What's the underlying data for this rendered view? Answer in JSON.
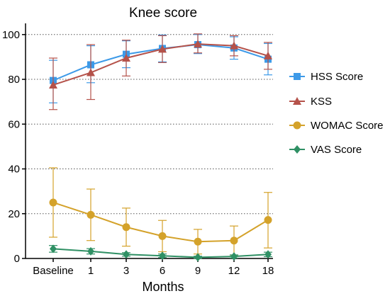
{
  "chart_data": {
    "type": "line",
    "title": "Knee score",
    "xlabel": "Months",
    "ylabel": "",
    "categories": [
      "Baseline",
      "1",
      "3",
      "6",
      "9",
      "12",
      "18"
    ],
    "ylim": [
      0,
      105
    ],
    "yticks": [
      0,
      20,
      40,
      60,
      80,
      100
    ],
    "grid": "horizontal dotted",
    "legend_position": "right",
    "series": [
      {
        "name": "HSS Score",
        "marker": "square",
        "color": "#3d9ae8",
        "values": [
          79.5,
          86.5,
          91.2,
          93.8,
          95.5,
          94.0,
          89.0
        ],
        "err_low": [
          10.0,
          8.0,
          6.0,
          6.0,
          4.0,
          5.0,
          7.0
        ],
        "err_high": [
          9.0,
          8.5,
          6.0,
          6.0,
          4.5,
          5.0,
          7.0
        ]
      },
      {
        "name": "KSS",
        "marker": "triangle",
        "color": "#b5524a",
        "values": [
          77.5,
          83.0,
          89.5,
          93.5,
          95.8,
          95.0,
          90.5
        ],
        "err_low": [
          11.0,
          12.0,
          8.0,
          6.0,
          4.0,
          4.5,
          6.0
        ],
        "err_high": [
          12.0,
          12.5,
          8.0,
          6.0,
          4.5,
          4.5,
          6.0
        ]
      },
      {
        "name": "WOMAC Score",
        "marker": "circle",
        "color": "#d4a22a",
        "values": [
          25.0,
          19.5,
          14.0,
          10.0,
          7.5,
          8.0,
          17.2
        ],
        "err_low": [
          15.5,
          11.5,
          8.5,
          7.0,
          5.5,
          6.5,
          12.5
        ],
        "err_high": [
          15.5,
          11.5,
          8.5,
          7.0,
          5.5,
          6.5,
          12.3
        ]
      },
      {
        "name": "VAS Score",
        "marker": "diamond",
        "color": "#2f9064",
        "values": [
          4.3,
          3.2,
          1.8,
          1.2,
          0.5,
          0.9,
          1.8
        ],
        "err_low": [
          1.5,
          1.2,
          0.8,
          0.8,
          0.5,
          0.7,
          1.0
        ],
        "err_high": [
          1.5,
          1.2,
          0.8,
          0.8,
          0.5,
          0.7,
          1.0
        ]
      }
    ]
  }
}
